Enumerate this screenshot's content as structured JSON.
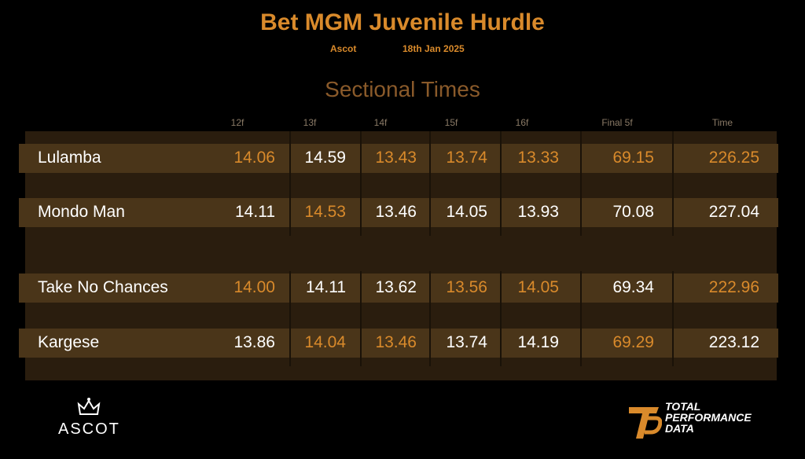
{
  "header": {
    "title": "Bet MGM Juvenile Hurdle",
    "venue": "Ascot",
    "date": "18th Jan 2025",
    "section": "Sectional Times"
  },
  "table": {
    "highlight_color": "#d98a2b",
    "columns": [
      "12f",
      "13f",
      "14f",
      "15f",
      "16f",
      "Final 5f",
      "Time"
    ],
    "rows": [
      {
        "name": "Lulamba",
        "values": [
          "14.06",
          "14.59",
          "13.43",
          "13.74",
          "13.33",
          "69.15",
          "226.25"
        ],
        "highlight": [
          true,
          false,
          true,
          true,
          true,
          true,
          true
        ]
      },
      {
        "name": "Mondo Man",
        "values": [
          "14.11",
          "14.53",
          "13.46",
          "14.05",
          "13.93",
          "70.08",
          "227.04"
        ],
        "highlight": [
          false,
          true,
          false,
          false,
          false,
          false,
          false
        ]
      },
      {
        "name": "Take No Chances",
        "values": [
          "14.00",
          "14.11",
          "13.62",
          "13.56",
          "14.05",
          "69.34",
          "222.96"
        ],
        "highlight": [
          true,
          false,
          false,
          true,
          true,
          false,
          true
        ]
      },
      {
        "name": "Kargese",
        "values": [
          "13.86",
          "14.04",
          "13.46",
          "13.74",
          "14.19",
          "69.29",
          "223.12"
        ],
        "highlight": [
          false,
          true,
          true,
          false,
          false,
          true,
          false
        ]
      }
    ]
  },
  "footer": {
    "left_logo": "ASCOT",
    "right_logo": [
      "TOTAL",
      "PERFORMANCE",
      "DATA"
    ]
  }
}
